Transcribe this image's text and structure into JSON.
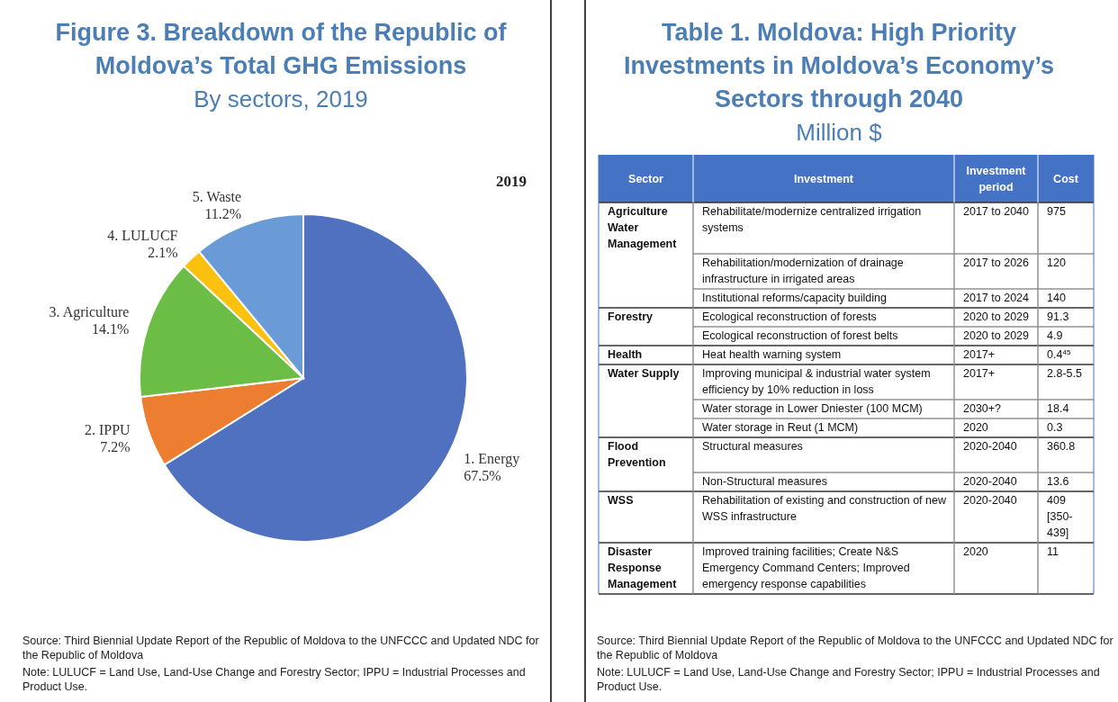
{
  "chart_data": [
    {
      "type": "pie",
      "title": "Figure 3. Breakdown of the Republic of Moldova’s Total GHG Emissions",
      "subtitle": "By sectors, 2019",
      "categories": [
        "1. Energy",
        "2. IPPU",
        "3. Agriculture",
        "4. LULUCF",
        "5. Waste"
      ],
      "values": [
        67.5,
        7.2,
        14.1,
        2.1,
        11.2
      ],
      "value_labels": [
        "67.5%",
        "7.2%",
        "14.1%",
        "2.1%",
        "11.2%"
      ],
      "colors": [
        "#5070c0",
        "#ec7d31",
        "#6bbd45",
        "#fcc10e",
        "#6a9bd6"
      ],
      "annotations": [
        "2019",
        "Source: Third Biennial Update Report of the Republic of Moldova to the UNFCCC and Updated NDC for the Republic of Moldova",
        "Note: LULUCF = Land Use, Land-Use Change and Forestry Sector; IPPU = Industrial Processes and Product Use."
      ]
    },
    {
      "type": "other",
      "title": "Table 1. Moldova: High Priority Investments in Moldova’s Economy’s Sectors through 2040",
      "subtitle": "Million $",
      "categories": [
        "Sector",
        "Investment",
        "Investment period",
        "Cost"
      ],
      "cell_labels": [
        [
          "Agriculture Water Management",
          "Rehabilitate/modernize centralized irrigation systems",
          "2017 to 2040",
          "975"
        ],
        [
          null,
          "Rehabilitation/modernization of drainage infrastructure in irrigated areas",
          "2017 to 2026",
          "120"
        ],
        [
          null,
          "Institutional reforms/capacity building",
          "2017 to 2024",
          "140"
        ],
        [
          "Forestry",
          "Ecological reconstruction of forests",
          "2020 to 2029",
          "91.3"
        ],
        [
          null,
          "Ecological reconstruction of forest belts",
          "2020 to 2029",
          "4.9"
        ],
        [
          "Health",
          "Heat health warning system",
          "2017+",
          "0.4$^{45}$"
        ],
        [
          "Water Supply",
          "Improving municipal & industrial water system efficiency by 10% reduction in loss",
          "2017+",
          "2.8-5.5"
        ],
        [
          null,
          "Water storage in Lower Dniester (100 MCM)",
          "2030+?",
          "18.4"
        ],
        [
          null,
          "Water storage in Reut (1 MCM)",
          "2020",
          "0.3"
        ],
        [
          "Flood Prevention",
          "Structural measures",
          "2020-2040",
          "360.8"
        ],
        [
          null,
          "Non-Structural measures",
          "2020-2040",
          "13.6"
        ],
        [
          "WSS",
          "Rehabilitation of existing and construction of new WSS infrastructure",
          "2020-2040",
          "409 [350-439]"
        ],
        [
          "Disaster Response Management",
          "Improved training facilities; Create N&S Emergency Command Centers; Improved emergency response capabilities",
          "2020",
          "11"
        ]
      ],
      "annotations": [
        "Source: Third Biennial Update Report of the Republic of Moldova to the UNFCCC and Updated NDC for the Republic of Moldova",
        "Note: LULUCF = Land Use, Land-Use Change and Forestry Sector; IPPU = Industrial Processes and Product Use."
      ]
    }
  ]
}
